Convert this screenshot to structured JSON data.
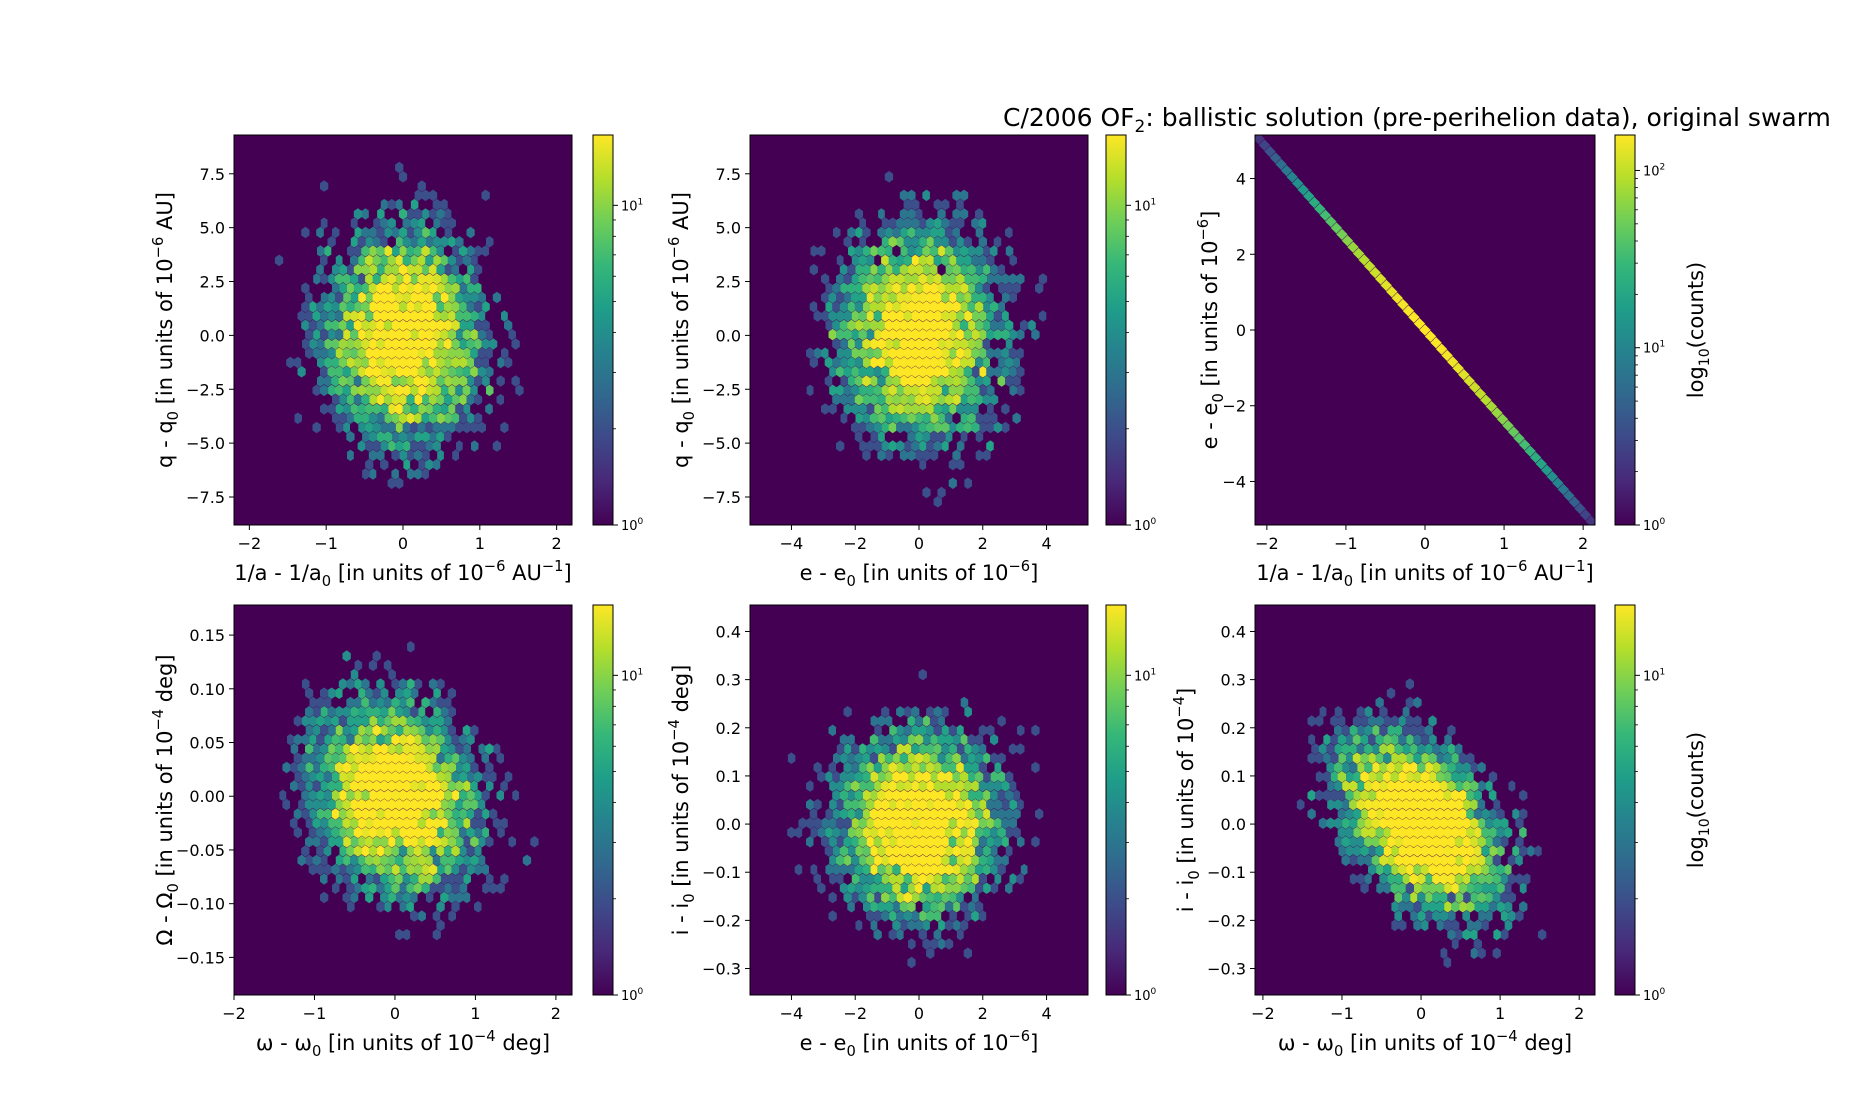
{
  "figure": {
    "title_main": "C/2006 OF",
    "title_sub": "2",
    "title_rest": ":  ballistic solution (pre-perihelion data), original swarm"
  },
  "colormap": [
    "#440154",
    "#482878",
    "#3e4989",
    "#31688e",
    "#26828e",
    "#1f9e89",
    "#35b779",
    "#6ece58",
    "#b5de2b",
    "#fde725"
  ],
  "chart_data": [
    {
      "type": "heatmap",
      "id": "p1",
      "xlim": [
        -2.2,
        2.2
      ],
      "ylim": [
        -8.8,
        9.3
      ],
      "xticks": [
        -2,
        -1,
        0,
        1,
        2
      ],
      "xtick_labels": [
        "−2",
        "−1",
        "0",
        "1",
        "2"
      ],
      "yticks": [
        -7.5,
        -5.0,
        -2.5,
        0.0,
        2.5,
        5.0,
        7.5
      ],
      "ytick_labels": [
        "−7.5",
        "−5.0",
        "−2.5",
        "0.0",
        "2.5",
        "5.0",
        "7.5"
      ],
      "xlabel": {
        "pre": "1/a - 1/a",
        "sub": "0",
        "mid": " [in units of 10",
        "sup": "−6",
        "post": " AU",
        "sup2": "−1",
        "end": "]"
      },
      "ylabel": {
        "pre": "q - q",
        "sub": "0",
        "mid": " [in units of 10",
        "sup": "−6",
        "post": " AU]"
      },
      "distribution": {
        "sx": 0.55,
        "sy": 2.6,
        "rho": 0.0
      },
      "colorbar": {
        "max_exp": 1.22,
        "tick_labels": [
          {
            "base": "10",
            "exp": "0",
            "value_exp": 0
          },
          {
            "base": "10",
            "exp": "1",
            "value_exp": 1
          }
        ],
        "label": ""
      }
    },
    {
      "type": "heatmap",
      "id": "p2",
      "xlim": [
        -5.3,
        5.3
      ],
      "ylim": [
        -8.8,
        9.3
      ],
      "xticks": [
        -4,
        -2,
        0,
        2,
        4
      ],
      "xtick_labels": [
        "−4",
        "−2",
        "0",
        "2",
        "4"
      ],
      "yticks": [
        -7.5,
        -5.0,
        -2.5,
        0.0,
        2.5,
        5.0,
        7.5
      ],
      "ytick_labels": [
        "−7.5",
        "−5.0",
        "−2.5",
        "0.0",
        "2.5",
        "5.0",
        "7.5"
      ],
      "xlabel": {
        "pre": "e - e",
        "sub": "0",
        "mid": " [in units of 10",
        "sup": "−6",
        "post": "]"
      },
      "ylabel": {
        "pre": "q - q",
        "sub": "0",
        "mid": " [in units of 10",
        "sup": "−6",
        "post": " AU]"
      },
      "distribution": {
        "sx": 1.35,
        "sy": 2.6,
        "rho": 0.0
      },
      "colorbar": {
        "max_exp": 1.22,
        "tick_labels": [
          {
            "base": "10",
            "exp": "0",
            "value_exp": 0
          },
          {
            "base": "10",
            "exp": "1",
            "value_exp": 1
          }
        ],
        "label": ""
      }
    },
    {
      "type": "heatmap",
      "id": "p3",
      "xlim": [
        -2.15,
        2.15
      ],
      "ylim": [
        -5.15,
        5.15
      ],
      "xticks": [
        -2,
        -1,
        0,
        1,
        2
      ],
      "xtick_labels": [
        "−2",
        "−1",
        "0",
        "1",
        "2"
      ],
      "yticks": [
        -4,
        -2,
        0,
        2,
        4
      ],
      "ytick_labels": [
        "−4",
        "−2",
        "0",
        "2",
        "4"
      ],
      "xlabel": {
        "pre": "1/a - 1/a",
        "sub": "0",
        "mid": " [in units of 10",
        "sup": "−6",
        "post": " AU",
        "sup2": "−1",
        "end": "]"
      },
      "ylabel": {
        "pre": "e - e",
        "sub": "0",
        "mid": " [in units of 10",
        "sup": "−6",
        "post": "]"
      },
      "line": {
        "x0": -2.1,
        "y0": 5.05,
        "x1": 2.1,
        "y1": -5.05
      },
      "colorbar": {
        "max_exp": 2.2,
        "tick_labels": [
          {
            "base": "10",
            "exp": "0",
            "value_exp": 0
          },
          {
            "base": "10",
            "exp": "1",
            "value_exp": 1
          },
          {
            "base": "10",
            "exp": "2",
            "value_exp": 2
          }
        ],
        "label_pre": "log",
        "label_sub": "10",
        "label_post": "(counts)"
      }
    },
    {
      "type": "heatmap",
      "id": "p4",
      "xlim": [
        -2.0,
        2.2
      ],
      "ylim": [
        -0.185,
        0.178
      ],
      "xticks": [
        -2,
        -1,
        0,
        1,
        2
      ],
      "xtick_labels": [
        "−2",
        "−1",
        "0",
        "1",
        "2"
      ],
      "yticks": [
        -0.15,
        -0.1,
        -0.05,
        0.0,
        0.05,
        0.1,
        0.15
      ],
      "ytick_labels": [
        "−0.15",
        "−0.10",
        "−0.05",
        "0.00",
        "0.05",
        "0.10",
        "0.15"
      ],
      "xlabel": {
        "pre": "ω - ω",
        "sub": "0",
        "mid": " [in units of 10",
        "sup": "−4",
        "post": " deg]"
      },
      "ylabel": {
        "pre": "Ω - Ω",
        "sub": "0",
        "mid": " [in units of 10",
        "sup": "−4",
        "post": " deg]"
      },
      "distribution": {
        "sx": 0.55,
        "sy": 0.048,
        "rho": -0.15
      },
      "colorbar": {
        "max_exp": 1.22,
        "tick_labels": [
          {
            "base": "10",
            "exp": "0",
            "value_exp": 0
          },
          {
            "base": "10",
            "exp": "1",
            "value_exp": 1
          }
        ],
        "label": ""
      }
    },
    {
      "type": "heatmap",
      "id": "p5",
      "xlim": [
        -5.3,
        5.3
      ],
      "ylim": [
        -0.355,
        0.455
      ],
      "xticks": [
        -4,
        -2,
        0,
        2,
        4
      ],
      "xtick_labels": [
        "−4",
        "−2",
        "0",
        "2",
        "4"
      ],
      "yticks": [
        -0.3,
        -0.2,
        -0.1,
        0.0,
        0.1,
        0.2,
        0.3,
        0.4
      ],
      "ytick_labels": [
        "−0.3",
        "−0.2",
        "−0.1",
        "0.0",
        "0.1",
        "0.2",
        "0.3",
        "0.4"
      ],
      "xlabel": {
        "pre": "e - e",
        "sub": "0",
        "mid": " [in units of 10",
        "sup": "−6",
        "post": "]"
      },
      "ylabel": {
        "pre": "i - i",
        "sub": "0",
        "mid": " [in units of 10",
        "sup": "−4",
        "post": " deg]"
      },
      "distribution": {
        "sx": 1.35,
        "sy": 0.1,
        "rho": 0.0
      },
      "colorbar": {
        "max_exp": 1.22,
        "tick_labels": [
          {
            "base": "10",
            "exp": "0",
            "value_exp": 0
          },
          {
            "base": "10",
            "exp": "1",
            "value_exp": 1
          }
        ],
        "label": ""
      }
    },
    {
      "type": "heatmap",
      "id": "p6",
      "xlim": [
        -2.1,
        2.2
      ],
      "ylim": [
        -0.355,
        0.455
      ],
      "xticks": [
        -2,
        -1,
        0,
        1,
        2
      ],
      "xtick_labels": [
        "−2",
        "−1",
        "0",
        "1",
        "2"
      ],
      "yticks": [
        -0.3,
        -0.2,
        -0.1,
        0.0,
        0.1,
        0.2,
        0.3,
        0.4
      ],
      "ytick_labels": [
        "−0.3",
        "−0.2",
        "−0.1",
        "0.0",
        "0.1",
        "0.2",
        "0.3",
        "0.4"
      ],
      "xlabel": {
        "pre": "ω - ω",
        "sub": "0",
        "mid": " [in units of 10",
        "sup": "−4",
        "post": " deg]"
      },
      "ylabel": {
        "pre": "i - i",
        "sub": "0",
        "mid": " [in units of 10",
        "sup": "−4",
        "post": "]"
      },
      "distribution": {
        "sx": 0.55,
        "sy": 0.1,
        "rho": -0.45
      },
      "colorbar": {
        "max_exp": 1.22,
        "tick_labels": [
          {
            "base": "10",
            "exp": "0",
            "value_exp": 0
          },
          {
            "base": "10",
            "exp": "1",
            "value_exp": 1
          }
        ],
        "label_pre": "log",
        "label_sub": "10",
        "label_post": "(counts)"
      }
    }
  ]
}
